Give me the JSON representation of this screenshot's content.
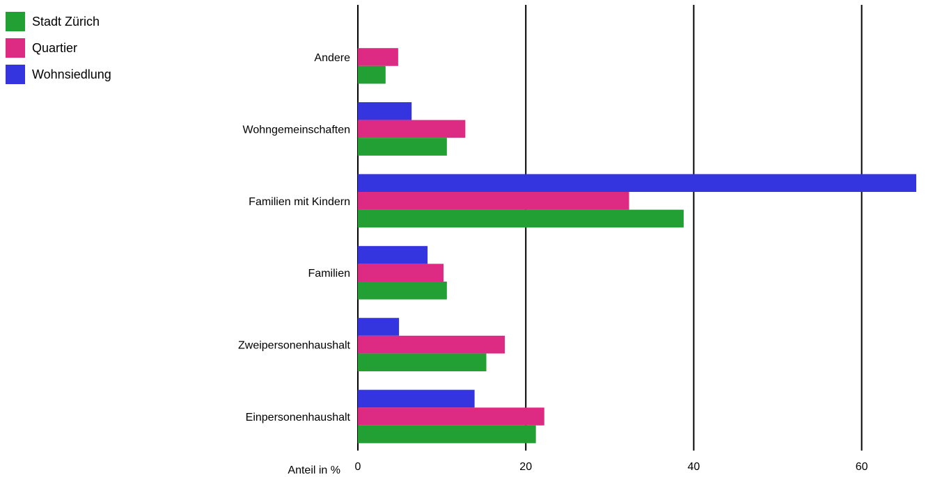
{
  "chart_data": {
    "type": "bar",
    "orientation": "horizontal",
    "categories": [
      "Andere",
      "Wohngemeinschaften",
      "Familien mit Kindern",
      "Familien",
      "Zweipersonenhaushalt",
      "Einpersonenhaushalt"
    ],
    "series": [
      {
        "name": "Stadt Zürich",
        "color": "#22a033",
        "values": [
          3.3,
          10.6,
          38.8,
          10.6,
          15.3,
          21.2
        ]
      },
      {
        "name": "Quartier",
        "color": "#dd2a82",
        "values": [
          4.8,
          12.8,
          32.3,
          10.2,
          17.5,
          22.2
        ]
      },
      {
        "name": "Wohnsiedlung",
        "color": "#3535e0",
        "values": [
          null,
          6.4,
          66.5,
          8.3,
          4.9,
          13.9
        ]
      }
    ],
    "xlabel": "Anteil in %",
    "xticks": [
      0,
      20,
      40,
      60
    ],
    "xlim": [
      0,
      66.5
    ],
    "grid": true,
    "legend_position": "top-left"
  }
}
